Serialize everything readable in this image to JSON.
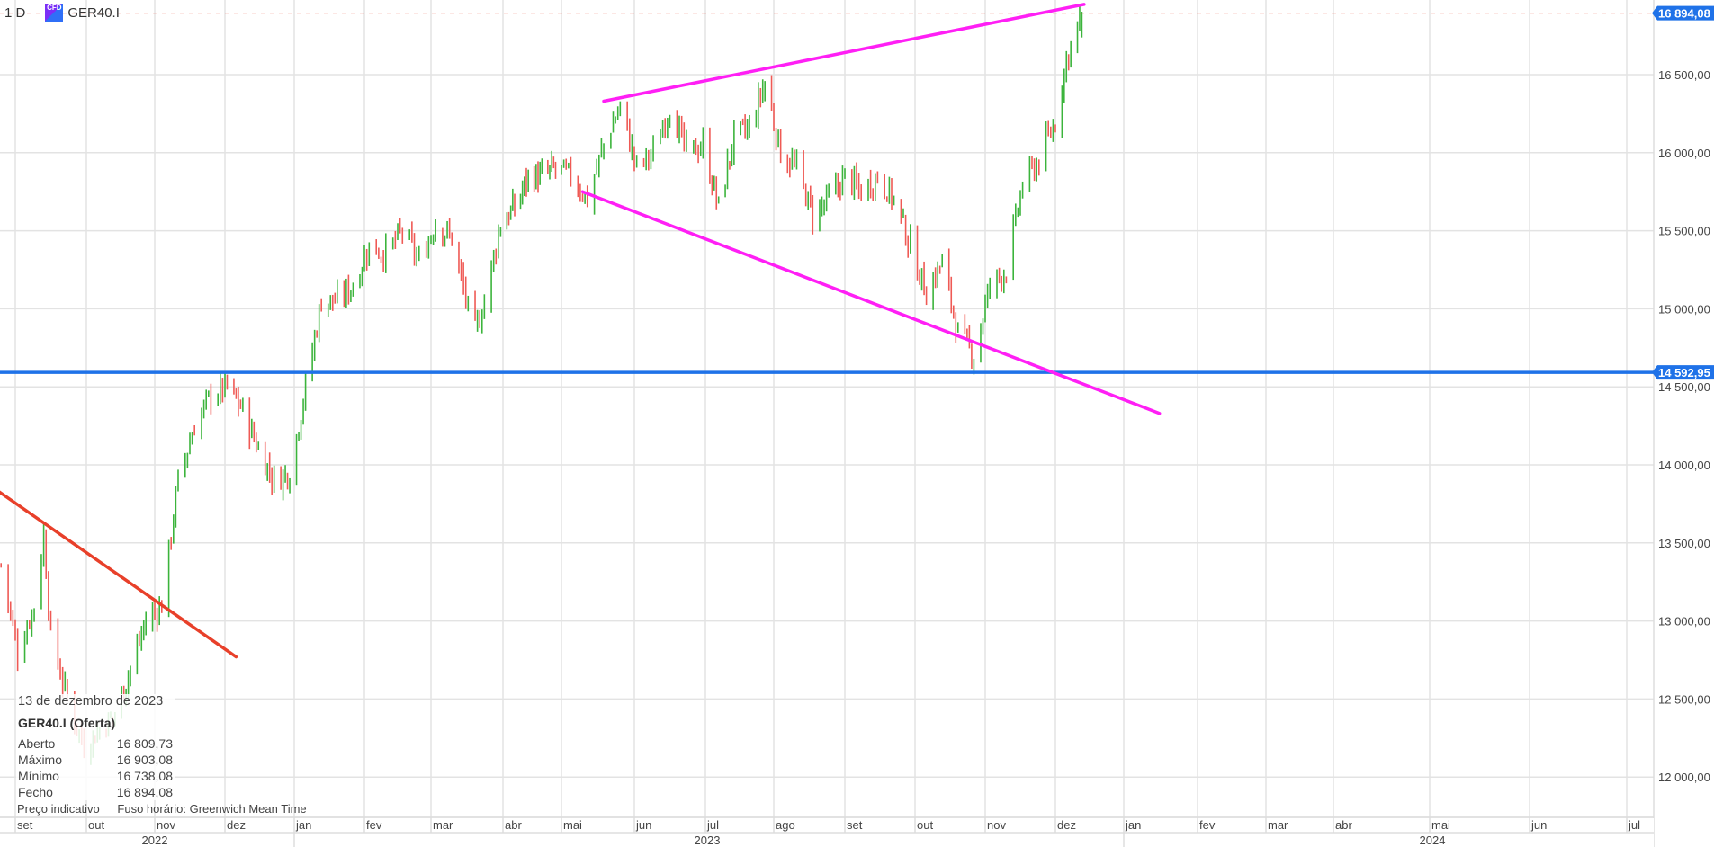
{
  "header": {
    "interval": "1 D",
    "instrument_badge": "CFD",
    "symbol": "GER40.I"
  },
  "legend": {
    "date": "13 de dezembro de 2023",
    "title": "GER40.I (Oferta)",
    "rows": [
      {
        "label": "Aberto",
        "value": "16 809,73"
      },
      {
        "label": "Máximo",
        "value": "16 903,08"
      },
      {
        "label": "Mínimo",
        "value": "16 738,08"
      },
      {
        "label": "Fecho",
        "value": "16 894,08"
      }
    ]
  },
  "footer": {
    "price_note": "Preço indicativo",
    "timezone": "Fuso horário: Greenwich Mean Time"
  },
  "colors": {
    "up": "#3cb43c",
    "down": "#ef5a55",
    "price_label": "#1f72e8",
    "support_line": "#1f72e8",
    "channel": "#ff1ff5",
    "downtrend": "#e8402a",
    "last_price_line": "#e8402a",
    "grid": "#e3e3e3"
  },
  "chart_data": {
    "type": "ohlc-bar",
    "symbol": "GER40.I",
    "interval": "1 D",
    "ylim": [
      11800,
      16950
    ],
    "grid": true,
    "y_ticks": [
      12000,
      12500,
      13000,
      13500,
      14000,
      14500,
      15000,
      15500,
      16000,
      16500
    ],
    "y_tick_labels": [
      "12 000,00",
      "12 500,00",
      "13 000,00",
      "13 500,00",
      "14 000,00",
      "14 500,00",
      "15 000,00",
      "15 500,00",
      "16 000,00",
      "16 500,00"
    ],
    "x_months": [
      "set",
      "out",
      "nov",
      "dez",
      "jan",
      "fev",
      "mar",
      "abr",
      "mai",
      "jun",
      "jul",
      "ago",
      "set",
      "out",
      "nov",
      "dez",
      "jan",
      "fev",
      "mar",
      "abr",
      "mai",
      "jun",
      "jul"
    ],
    "x_month_dates": [
      "2022-09-01",
      "2022-10-01",
      "2022-11-01",
      "2022-12-01",
      "2023-01-01",
      "2023-02-01",
      "2023-03-01",
      "2023-04-01",
      "2023-05-01",
      "2023-06-01",
      "2023-07-01",
      "2023-08-01",
      "2023-09-01",
      "2023-10-01",
      "2023-11-01",
      "2023-12-01",
      "2024-01-01",
      "2024-02-01",
      "2024-03-01",
      "2024-04-01",
      "2024-05-01",
      "2024-06-01",
      "2024-07-01"
    ],
    "x_years": [
      "2022",
      "2023",
      "2024"
    ],
    "approx_closes": [
      [
        "2022-08-26",
        13360
      ],
      [
        "2022-09-02",
        12800
      ],
      [
        "2022-09-09",
        13100
      ],
      [
        "2022-09-13",
        13550
      ],
      [
        "2022-09-16",
        12900
      ],
      [
        "2022-09-23",
        12500
      ],
      [
        "2022-09-30",
        12200
      ],
      [
        "2022-10-07",
        12300
      ],
      [
        "2022-10-14",
        12400
      ],
      [
        "2022-10-21",
        12700
      ],
      [
        "2022-10-28",
        13000
      ],
      [
        "2022-11-04",
        13100
      ],
      [
        "2022-11-11",
        13900
      ],
      [
        "2022-11-18",
        14250
      ],
      [
        "2022-11-25",
        14450
      ],
      [
        "2022-12-02",
        14500
      ],
      [
        "2022-12-09",
        14350
      ],
      [
        "2022-12-16",
        14100
      ],
      [
        "2022-12-23",
        13900
      ],
      [
        "2022-12-30",
        13950
      ],
      [
        "2023-01-06",
        14500
      ],
      [
        "2023-01-13",
        15050
      ],
      [
        "2023-01-20",
        15050
      ],
      [
        "2023-01-27",
        15150
      ],
      [
        "2023-02-03",
        15400
      ],
      [
        "2023-02-10",
        15350
      ],
      [
        "2023-02-17",
        15500
      ],
      [
        "2023-02-24",
        15300
      ],
      [
        "2023-03-03",
        15550
      ],
      [
        "2023-03-10",
        15450
      ],
      [
        "2023-03-17",
        15000
      ],
      [
        "2023-03-20",
        14850
      ],
      [
        "2023-03-24",
        15050
      ],
      [
        "2023-03-31",
        15550
      ],
      [
        "2023-04-07",
        15650
      ],
      [
        "2023-04-14",
        15850
      ],
      [
        "2023-04-21",
        15850
      ],
      [
        "2023-04-28",
        15900
      ],
      [
        "2023-05-05",
        15850
      ],
      [
        "2023-05-12",
        15700
      ],
      [
        "2023-05-19",
        16050
      ],
      [
        "2023-05-26",
        16300
      ],
      [
        "2023-06-02",
        15900
      ],
      [
        "2023-06-09",
        16000
      ],
      [
        "2023-06-16",
        16300
      ],
      [
        "2023-06-23",
        16000
      ],
      [
        "2023-06-30",
        16050
      ],
      [
        "2023-07-07",
        15650
      ],
      [
        "2023-07-14",
        16100
      ],
      [
        "2023-07-21",
        16150
      ],
      [
        "2023-07-28",
        16450
      ],
      [
        "2023-08-04",
        16000
      ],
      [
        "2023-08-11",
        15900
      ],
      [
        "2023-08-18",
        15600
      ],
      [
        "2023-08-25",
        15700
      ],
      [
        "2023-09-01",
        15850
      ],
      [
        "2023-09-08",
        15750
      ],
      [
        "2023-09-15",
        15850
      ],
      [
        "2023-09-22",
        15700
      ],
      [
        "2023-09-29",
        15400
      ],
      [
        "2023-10-06",
        15100
      ],
      [
        "2023-10-13",
        15300
      ],
      [
        "2023-10-20",
        14850
      ],
      [
        "2023-10-27",
        14700
      ],
      [
        "2023-11-03",
        15150
      ],
      [
        "2023-11-10",
        15250
      ],
      [
        "2023-11-17",
        15800
      ],
      [
        "2023-11-24",
        15950
      ],
      [
        "2023-12-01",
        16200
      ],
      [
        "2023-12-06",
        16600
      ],
      [
        "2023-12-13",
        16894.08
      ]
    ],
    "last_bar": {
      "date": "2023-12-13",
      "open": 16809.73,
      "high": 16903.08,
      "low": 16738.08,
      "close": 16894.08
    },
    "last_price": 16894.08,
    "last_price_label": "16 894,08",
    "horizontal_line": {
      "price": 14592.95,
      "label": "14 592,95"
    },
    "trend_lines": [
      {
        "color": "channel",
        "from": [
          "2023-05-19",
          16330
        ],
        "to": [
          "2023-12-14",
          16950
        ]
      },
      {
        "color": "channel",
        "from": [
          "2023-05-10",
          15750
        ],
        "to": [
          "2024-01-16",
          14330
        ]
      },
      {
        "color": "downtrend",
        "from": [
          "2022-08-24",
          13840
        ],
        "to": [
          "2022-12-06",
          12770
        ]
      }
    ]
  }
}
